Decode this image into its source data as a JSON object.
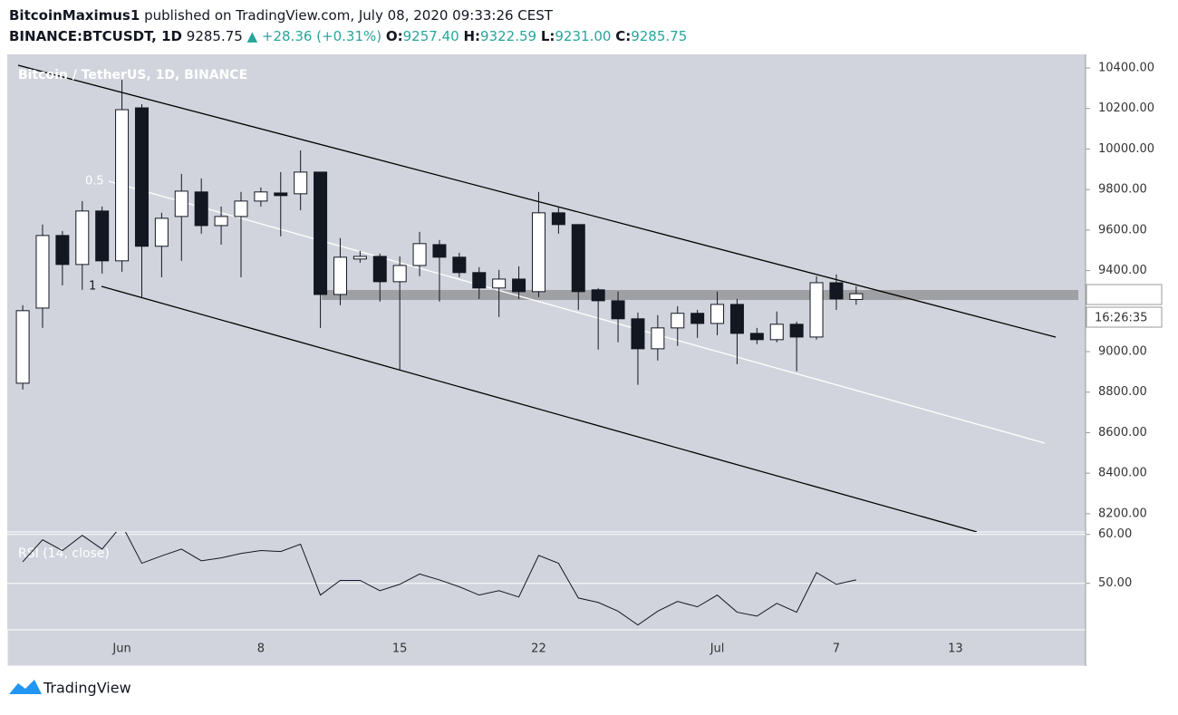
{
  "header": {
    "author": "BitcoinMaximus1",
    "published": "published on TradingView.com, July 08, 2020 09:33:26 CEST",
    "symbol": "BINANCE:BTCUSDT, 1D",
    "price": "9285.75",
    "change": "▲ +28.36 (+0.31%)",
    "ohlc": [
      {
        "label": "O:",
        "value": "9257.40"
      },
      {
        "label": "H:",
        "value": "9322.59"
      },
      {
        "label": "L:",
        "value": "9231.00"
      },
      {
        "label": "C:",
        "value": "9285.75"
      }
    ]
  },
  "footer": {
    "brand": "TradingView"
  },
  "chart_data": [
    {
      "type": "candlestick",
      "title": "Bitcoin / TetherUS, 1D, BINANCE",
      "x": [
        0,
        1,
        2,
        3,
        4,
        5,
        6,
        7,
        8,
        9,
        10,
        11,
        12,
        13,
        14,
        15,
        16,
        17,
        18,
        19,
        20,
        21,
        22,
        23,
        24,
        25,
        26,
        27,
        28,
        29,
        30,
        31,
        32,
        33,
        34,
        35,
        36,
        37,
        38,
        39,
        40,
        41,
        42
      ],
      "open": [
        8844,
        9215,
        9573,
        9430,
        9694,
        9448,
        10203,
        9520,
        9667,
        9788,
        9622,
        9667,
        9743,
        9783,
        9779,
        9886,
        9282,
        9457,
        9470,
        9345,
        9425,
        9528,
        9466,
        9390,
        9314,
        9358,
        9296,
        9685,
        9627,
        9305,
        9251,
        9162,
        9014,
        9117,
        9189,
        9139,
        9233,
        9090,
        9059,
        9135,
        9072,
        9340,
        9257.4
      ],
      "high": [
        9229,
        9627,
        9595,
        9743,
        9716,
        10342,
        10221,
        9685,
        9877,
        9855,
        9716,
        9788,
        9810,
        9886,
        9993,
        9886,
        9560,
        9497,
        9484,
        9470,
        9591,
        9551,
        9488,
        9417,
        9403,
        9421,
        9788,
        9716,
        9627,
        9314,
        9296,
        9193,
        9180,
        9224,
        9206,
        9296,
        9260,
        9117,
        9198,
        9148,
        9372,
        9381,
        9322.59
      ],
      "low": [
        8813,
        9117,
        9327,
        9305,
        9385,
        9394,
        9269,
        9367,
        9448,
        9582,
        9528,
        9367,
        9716,
        9569,
        9698,
        9117,
        9229,
        9439,
        9247,
        8911,
        9372,
        9247,
        9367,
        9260,
        9171,
        9260,
        9269,
        9582,
        9206,
        9010,
        9046,
        8836,
        8956,
        9028,
        9068,
        9081,
        8938,
        9037,
        9046,
        8903,
        9059,
        9206,
        9231.0
      ],
      "close": [
        9202,
        9573,
        9430,
        9694,
        9448,
        10194,
        9520,
        9658,
        9792,
        9622,
        9667,
        9743,
        9788,
        9770,
        9886,
        9282,
        9466,
        9470,
        9345,
        9425,
        9533,
        9466,
        9390,
        9314,
        9358,
        9296,
        9685,
        9627,
        9296,
        9251,
        9162,
        9014,
        9117,
        9189,
        9139,
        9233,
        9090,
        9059,
        9135,
        9072,
        9340,
        9260,
        9285.75
      ],
      "up_color": "#ffffff",
      "down_color": "#131722",
      "xlim": [
        -0.78,
        53.56
      ],
      "xticks": [
        {
          "value": 5,
          "label": "Jun"
        },
        {
          "value": 12,
          "label": "8"
        },
        {
          "value": 19,
          "label": "15"
        },
        {
          "value": 26,
          "label": "22"
        },
        {
          "value": 35,
          "label": "Jul"
        },
        {
          "value": 41,
          "label": "7"
        },
        {
          "value": 47,
          "label": "13"
        }
      ],
      "ylim": [
        8110,
        10467
      ],
      "yticks": [
        {
          "value": 8200,
          "label": "8200.00"
        },
        {
          "value": 8400,
          "label": "8400.00"
        },
        {
          "value": 8600,
          "label": "8600.00"
        },
        {
          "value": 8800,
          "label": "8800.00"
        },
        {
          "value": 9000,
          "label": "9000.00"
        },
        {
          "value": 9400,
          "label": "9400.00"
        },
        {
          "value": 9600,
          "label": "9600.00"
        },
        {
          "value": 9800,
          "label": "9800.00"
        },
        {
          "value": 10000,
          "label": "10000.00"
        },
        {
          "value": 10200,
          "label": "10200.00"
        },
        {
          "value": 10400,
          "label": "10400.00"
        }
      ],
      "last_price": {
        "value": 9285.75,
        "label": "9285.75"
      },
      "countdown": "16:26:35",
      "annotations": [
        "0.5",
        "1"
      ]
    },
    {
      "type": "line",
      "title": "RSI (14, close)",
      "color": "#131722",
      "x": [
        0,
        1,
        2,
        3,
        4,
        5,
        6,
        7,
        8,
        9,
        10,
        11,
        12,
        13,
        14,
        15,
        16,
        17,
        18,
        19,
        20,
        21,
        22,
        23,
        24,
        25,
        26,
        27,
        28,
        29,
        30,
        31,
        32,
        33,
        34,
        35,
        36,
        37,
        38,
        39,
        40,
        41,
        42
      ],
      "values": [
        54.4,
        58.9,
        56.7,
        59.8,
        57.0,
        61.9,
        54.1,
        55.6,
        57.0,
        54.6,
        55.2,
        56.1,
        56.7,
        56.5,
        58.0,
        47.6,
        50.6,
        50.6,
        48.5,
        49.8,
        51.9,
        50.7,
        49.3,
        47.6,
        48.5,
        47.2,
        55.7,
        54.1,
        47.0,
        46.1,
        44.3,
        41.5,
        44.3,
        46.3,
        45.2,
        47.6,
        44.1,
        43.3,
        45.9,
        44.1,
        52.2,
        49.8,
        50.7
      ],
      "xlim": [
        -0.78,
        53.56
      ],
      "ylim": [
        40.5,
        60.5
      ],
      "yticks": [
        {
          "value": 50,
          "label": "50.00"
        },
        {
          "value": 60,
          "label": "60.00"
        }
      ]
    }
  ]
}
